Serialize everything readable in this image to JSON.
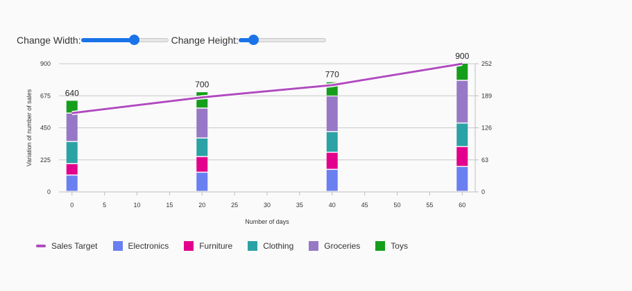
{
  "controls": {
    "width_label": "Change Width:",
    "height_label": "Change Height:",
    "width_value": 0.61,
    "height_value": 0.17
  },
  "chart_data": {
    "type": "bar",
    "stacked": true,
    "x": [
      0,
      20,
      40,
      60
    ],
    "xlabel": "Number of days",
    "ylabel": "Variation of number of sales",
    "xlim": [
      -2,
      62
    ],
    "xticks": [
      0,
      5,
      10,
      15,
      20,
      25,
      30,
      35,
      40,
      45,
      50,
      55,
      60
    ],
    "ylim": [
      0,
      900
    ],
    "yticks": [
      0,
      225,
      450,
      675,
      900
    ],
    "y2lim": [
      0,
      252
    ],
    "y2ticks": [
      0,
      63,
      126,
      189,
      252
    ],
    "grid": true,
    "legend_position": "bottom",
    "series": [
      {
        "name": "Electronics",
        "color": "#6a7ff0",
        "values": [
          115,
          135,
          155,
          175
        ]
      },
      {
        "name": "Furniture",
        "color": "#e3008c",
        "values": [
          80,
          110,
          120,
          140
        ]
      },
      {
        "name": "Clothing",
        "color": "#2ba2a6",
        "values": [
          155,
          130,
          145,
          165
        ]
      },
      {
        "name": "Groceries",
        "color": "#9778c6",
        "values": [
          200,
          210,
          250,
          300
        ]
      },
      {
        "name": "Toys",
        "color": "#159e1c",
        "values": [
          90,
          115,
          100,
          120
        ]
      }
    ],
    "totals": [
      "640",
      "700",
      "770",
      "900"
    ],
    "line": {
      "name": "Sales Target",
      "color": "#b04cbf",
      "axis": "secondary",
      "values": [
        155,
        186,
        210,
        252
      ]
    }
  }
}
